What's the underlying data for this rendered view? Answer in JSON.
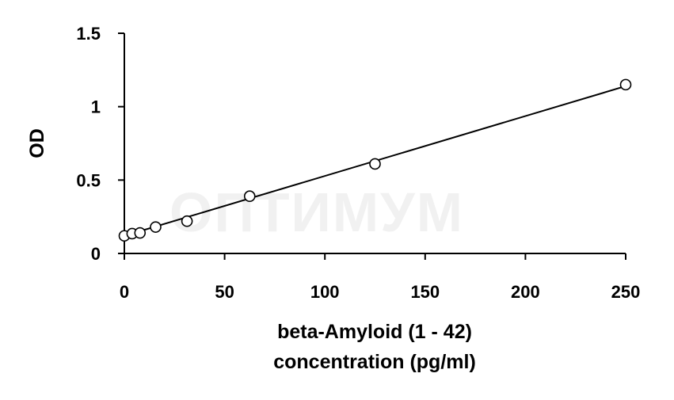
{
  "chart_data": {
    "type": "scatter",
    "watermark": "ОПТИМУМ",
    "xlabel_lines": [
      "beta-Amyloid (1 - 42)",
      "concentration (pg/ml)"
    ],
    "ylabel": "OD",
    "xlim": [
      0,
      250
    ],
    "ylim": [
      0,
      1.5
    ],
    "x_ticks": [
      0,
      50,
      100,
      150,
      200,
      250
    ],
    "x_tick_labels": [
      "0",
      "50",
      "100",
      "150",
      "200",
      "250"
    ],
    "y_ticks": [
      0,
      0.5,
      1,
      1.5
    ],
    "y_tick_labels": [
      "0",
      "0.5",
      "1",
      "1.5"
    ],
    "grid": false,
    "legend": "none",
    "series": [
      {
        "marker": "open-circle",
        "x": [
          0,
          3.9,
          7.8,
          15.6,
          31.25,
          62.5,
          125,
          250
        ],
        "y": [
          0.12,
          0.135,
          0.14,
          0.18,
          0.22,
          0.39,
          0.61,
          1.15
        ]
      }
    ],
    "trendline": {
      "type": "linear",
      "x": [
        0,
        250
      ],
      "y": [
        0.12,
        1.14
      ]
    },
    "colors": {
      "axis": "#000000",
      "marker_stroke": "#000000",
      "marker_fill": "#ffffff",
      "trendline": "#000000",
      "watermark": "#f1f1f1"
    }
  }
}
